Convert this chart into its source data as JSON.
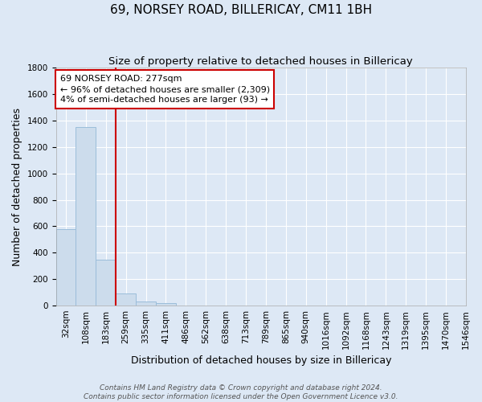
{
  "title": "69, NORSEY ROAD, BILLERICAY, CM11 1BH",
  "subtitle": "Size of property relative to detached houses in Billericay",
  "xlabel": "Distribution of detached houses by size in Billericay",
  "ylabel": "Number of detached properties",
  "footer_line1": "Contains HM Land Registry data © Crown copyright and database right 2024.",
  "footer_line2": "Contains public sector information licensed under the Open Government Licence v3.0.",
  "bin_labels": [
    "32sqm",
    "108sqm",
    "183sqm",
    "259sqm",
    "335sqm",
    "411sqm",
    "486sqm",
    "562sqm",
    "638sqm",
    "713sqm",
    "789sqm",
    "865sqm",
    "940sqm",
    "1016sqm",
    "1092sqm",
    "1168sqm",
    "1243sqm",
    "1319sqm",
    "1395sqm",
    "1470sqm",
    "1546sqm"
  ],
  "values": [
    580,
    1350,
    350,
    90,
    30,
    18,
    0,
    0,
    0,
    0,
    0,
    0,
    0,
    0,
    0,
    0,
    0,
    0,
    0,
    0
  ],
  "bar_color": "#ccdcec",
  "bar_edge_color": "#9bbdda",
  "vline_color": "#cc0000",
  "vline_x_index": 2.5,
  "annotation_title": "69 NORSEY ROAD: 277sqm",
  "annotation_line1": "← 96% of detached houses are smaller (2,309)",
  "annotation_line2": "4% of semi-detached houses are larger (93) →",
  "annotation_box_facecolor": "#ffffff",
  "annotation_box_edgecolor": "#cc0000",
  "ylim": [
    0,
    1800
  ],
  "yticks": [
    0,
    200,
    400,
    600,
    800,
    1000,
    1200,
    1400,
    1600,
    1800
  ],
  "background_color": "#dde8f5",
  "grid_color": "#ffffff",
  "title_fontsize": 11,
  "subtitle_fontsize": 9.5,
  "axis_label_fontsize": 9,
  "tick_fontsize": 7.5,
  "annotation_fontsize": 8,
  "footer_fontsize": 6.5
}
